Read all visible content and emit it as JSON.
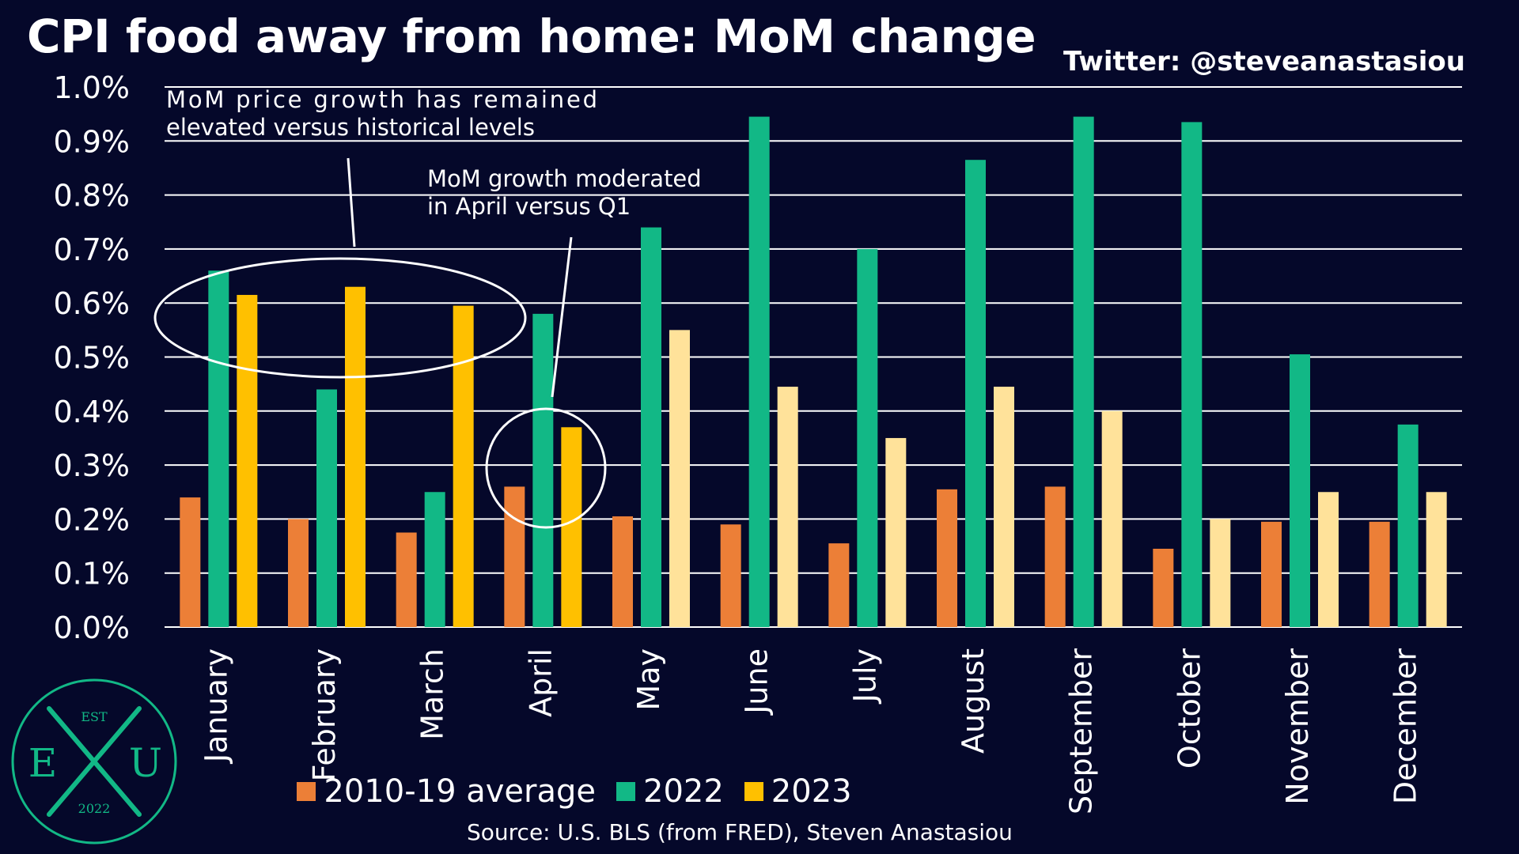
{
  "header": {
    "title": "CPI food away from home: MoM change",
    "twitter": "Twitter: @steveanastasiou"
  },
  "footer": {
    "source": "Source: U.S. BLS (from FRED), Steven Anastasiou"
  },
  "logo": {
    "est": "EST",
    "left_letter": "E",
    "right_letter": "U",
    "year": "2022"
  },
  "annotations": [
    {
      "text": "MoM price growth has remained elevated versus historical levels"
    },
    {
      "text": "MoM growth moderated in April versus Q1"
    }
  ],
  "colors": {
    "background": "#05082a",
    "avg": "#ec7f37",
    "y2022": "#12b886",
    "y2023": "#ffc000",
    "y2023_light": "#ffe29a"
  },
  "chart_data": {
    "type": "bar",
    "title": "CPI food away from home: MoM change",
    "xlabel": "",
    "ylabel": "",
    "ylim": [
      0,
      1.0
    ],
    "y_ticks": [
      "0.0%",
      "0.1%",
      "0.2%",
      "0.3%",
      "0.4%",
      "0.5%",
      "0.6%",
      "0.7%",
      "0.8%",
      "0.9%",
      "1.0%"
    ],
    "grid": true,
    "legend_position": "bottom",
    "categories": [
      "January",
      "February",
      "March",
      "April",
      "May",
      "June",
      "July",
      "August",
      "September",
      "October",
      "November",
      "December"
    ],
    "series": [
      {
        "name": "2010-19 average",
        "values": [
          0.24,
          0.2,
          0.175,
          0.26,
          0.205,
          0.19,
          0.155,
          0.255,
          0.26,
          0.145,
          0.195,
          0.195
        ]
      },
      {
        "name": "2022",
        "values": [
          0.66,
          0.44,
          0.25,
          0.58,
          0.74,
          0.945,
          0.7,
          0.865,
          0.945,
          0.935,
          0.505,
          0.375
        ]
      },
      {
        "name": "2023",
        "values": [
          0.615,
          0.63,
          0.595,
          0.37,
          0.55,
          0.445,
          0.35,
          0.445,
          0.4,
          0.2,
          0.25,
          0.25
        ],
        "note_highlighted_months": [
          "January",
          "February",
          "March",
          "April"
        ]
      }
    ]
  }
}
